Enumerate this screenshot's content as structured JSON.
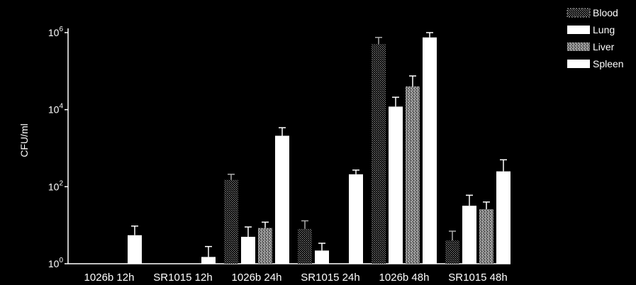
{
  "chart_data": {
    "type": "bar",
    "title": "",
    "xlabel": "",
    "ylabel": "CFU/ml",
    "yscale": "log",
    "ylim": [
      1,
      1000000
    ],
    "y_ticks": [
      {
        "value": 1,
        "base": "10",
        "exp": "0"
      },
      {
        "value": 100,
        "base": "10",
        "exp": "2"
      },
      {
        "value": 10000,
        "base": "10",
        "exp": "4"
      },
      {
        "value": 1000000,
        "base": "10",
        "exp": "6"
      }
    ],
    "categories": [
      "1026b 12h",
      "SR1015 12h",
      "1026b 24h",
      "SR1015 24h",
      "1026b 48h",
      "SR1015 48h"
    ],
    "legend_position": "top-right",
    "series": [
      {
        "name": "Blood",
        "color": "#8a8a8a",
        "pattern": "dotted",
        "values": [
          1,
          1,
          150,
          8,
          500000,
          4
        ],
        "errors": [
          0,
          0,
          60,
          5,
          250000,
          3
        ]
      },
      {
        "name": "Lung",
        "color": "#ffffff",
        "pattern": "solid",
        "values": [
          1,
          1,
          5,
          2.2,
          12000,
          32
        ],
        "errors": [
          0,
          0,
          4,
          1.2,
          9000,
          28
        ]
      },
      {
        "name": "Liver",
        "color": "#9a9a9a",
        "pattern": "speckled",
        "values": [
          1,
          1,
          8.5,
          1,
          40000,
          26
        ],
        "errors": [
          0,
          0,
          3.5,
          0,
          35000,
          14
        ]
      },
      {
        "name": "Spleen",
        "color": "#ffffff",
        "pattern": "solid",
        "values": [
          5.5,
          1.5,
          2100,
          210,
          750000,
          250
        ],
        "errors": [
          4,
          1.3,
          1300,
          60,
          250000,
          250
        ]
      }
    ]
  }
}
